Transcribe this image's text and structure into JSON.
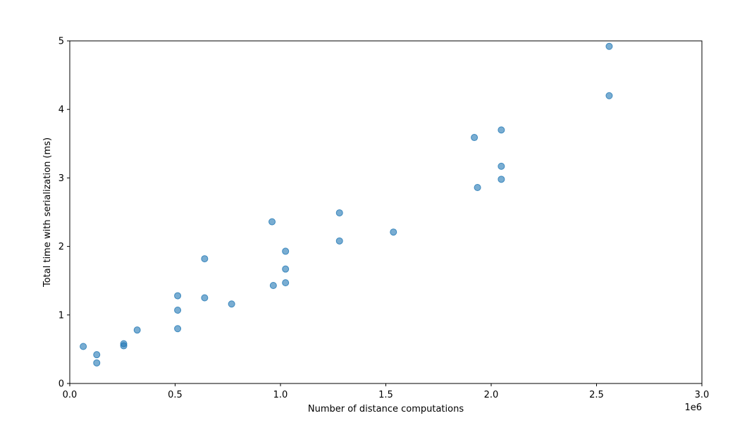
{
  "chart_data": {
    "type": "scatter",
    "title": "",
    "xlabel": "Number of distance computations",
    "ylabel": "Total time with serialization (ms)",
    "x_offset_label": "1e6",
    "xlim": [
      0,
      3.0
    ],
    "ylim": [
      0,
      5
    ],
    "xticks": [
      "0.0",
      "0.5",
      "1.0",
      "1.5",
      "2.0",
      "2.5",
      "3.0"
    ],
    "xtick_values": [
      0,
      0.5,
      1.0,
      1.5,
      2.0,
      2.5,
      3.0
    ],
    "yticks": [
      "0",
      "1",
      "2",
      "3",
      "4",
      "5"
    ],
    "ytick_values": [
      0,
      1,
      2,
      3,
      4,
      5
    ],
    "grid": false,
    "marker_color": "#1f77b4",
    "marker_opacity": 0.6,
    "series": [
      {
        "points": [
          {
            "x": 0.064,
            "y": 0.54
          },
          {
            "x": 0.128,
            "y": 0.42
          },
          {
            "x": 0.128,
            "y": 0.3
          },
          {
            "x": 0.256,
            "y": 0.58
          },
          {
            "x": 0.256,
            "y": 0.55
          },
          {
            "x": 0.32,
            "y": 0.78
          },
          {
            "x": 0.512,
            "y": 1.28
          },
          {
            "x": 0.512,
            "y": 1.07
          },
          {
            "x": 0.512,
            "y": 0.8
          },
          {
            "x": 0.64,
            "y": 1.82
          },
          {
            "x": 0.64,
            "y": 1.25
          },
          {
            "x": 0.768,
            "y": 1.16
          },
          {
            "x": 0.96,
            "y": 2.36
          },
          {
            "x": 0.966,
            "y": 1.43
          },
          {
            "x": 1.024,
            "y": 1.93
          },
          {
            "x": 1.024,
            "y": 1.67
          },
          {
            "x": 1.024,
            "y": 1.47
          },
          {
            "x": 1.28,
            "y": 2.49
          },
          {
            "x": 1.28,
            "y": 2.08
          },
          {
            "x": 1.536,
            "y": 2.21
          },
          {
            "x": 1.92,
            "y": 3.59
          },
          {
            "x": 1.935,
            "y": 2.86
          },
          {
            "x": 2.048,
            "y": 3.7
          },
          {
            "x": 2.048,
            "y": 3.17
          },
          {
            "x": 2.048,
            "y": 2.98
          },
          {
            "x": 2.56,
            "y": 4.92
          },
          {
            "x": 2.56,
            "y": 4.2
          }
        ]
      }
    ]
  }
}
